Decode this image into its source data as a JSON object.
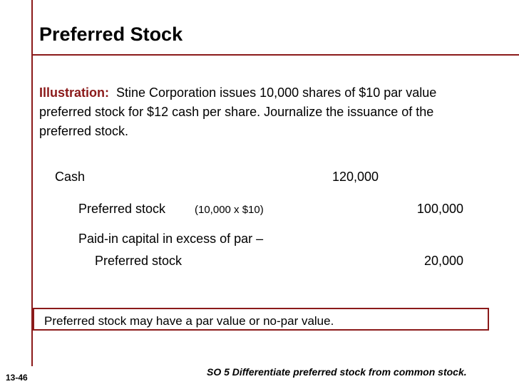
{
  "slide": {
    "title": "Preferred Stock",
    "illustration_label": "Illustration:",
    "illustration_text": "Stine Corporation issues 10,000 shares of $10 par value preferred stock for $12 cash per share. Journalize the issuance of the preferred stock."
  },
  "journal": {
    "cash_account": "Cash",
    "cash_debit": "120,000",
    "preferred_account": "Preferred stock",
    "preferred_calc": "(10,000 x $10)",
    "preferred_credit": "100,000",
    "paid_in_line1": "Paid-in capital in excess of par –",
    "paid_in_line2": "Preferred stock",
    "paid_in_credit": "20,000"
  },
  "note": "Preferred stock may have a par value or no-par value.",
  "footer": {
    "slide_id": "13-46",
    "objective": "SO 5  Differentiate preferred stock from common stock."
  },
  "colors": {
    "accent": "#8b1a1a",
    "background": "#ffffff",
    "text": "#000000"
  }
}
